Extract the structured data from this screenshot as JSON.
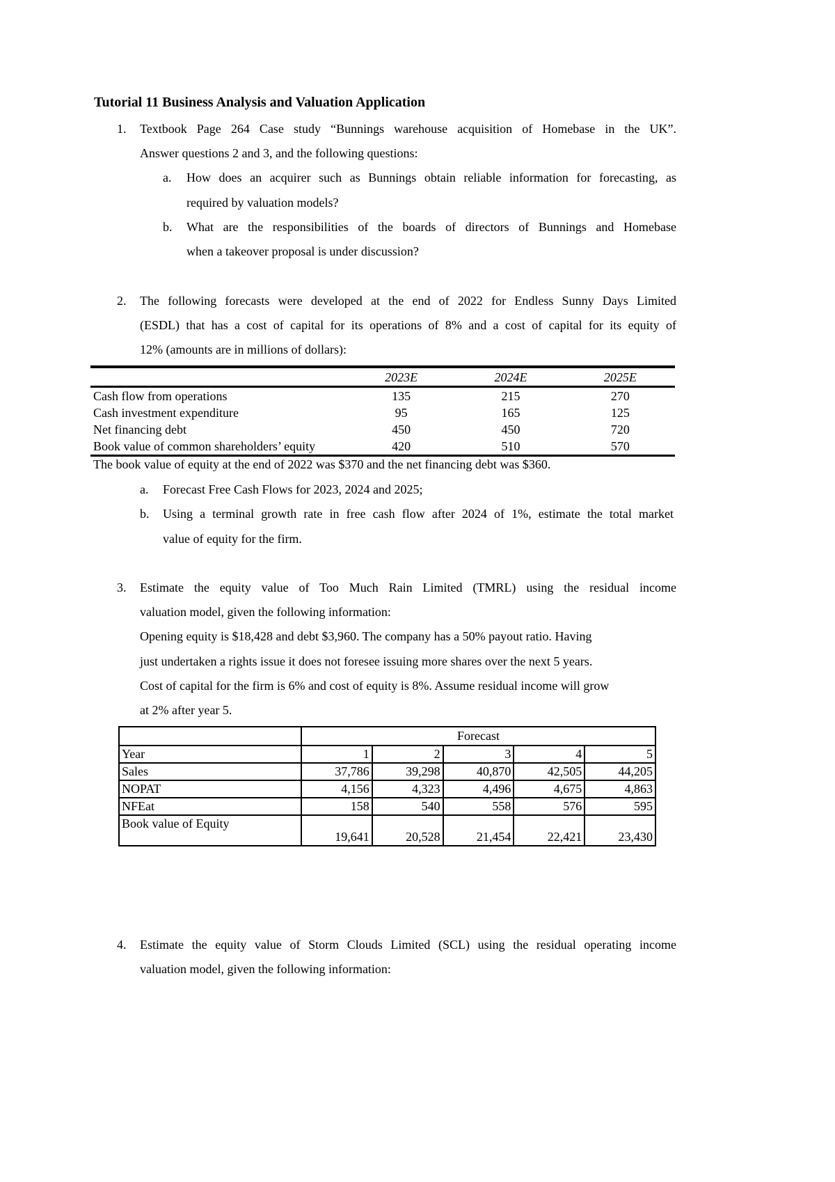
{
  "title": "Tutorial 11 Business Analysis and Valuation Application",
  "q1": {
    "num": "1.",
    "line1": "Textbook Page 264 Case study “Bunnings warehouse acquisition of Homebase in the UK”.",
    "line2": "Answer questions 2 and 3, and the following questions:",
    "a": {
      "label": "a.",
      "line1": "How does an acquirer such as Bunnings obtain reliable information for forecasting, as",
      "line2": "required by valuation models?"
    },
    "b": {
      "label": "b.",
      "line1": "What are the responsibilities of the boards of directors of Bunnings and Homebase",
      "line2": "when a takeover proposal is under discussion?"
    }
  },
  "q2": {
    "num": "2.",
    "line1": "The following forecasts were developed at the end of 2022 for Endless Sunny Days Limited",
    "line2": "(ESDL) that has a cost of capital for its operations of 8% and a cost of capital for its equity of",
    "line3": "12% (amounts are in millions of dollars):",
    "table": {
      "headers": [
        "2023E",
        "2024E",
        "2025E"
      ],
      "rows": [
        {
          "label": "Cash flow from operations",
          "values": [
            "135",
            "215",
            "270"
          ]
        },
        {
          "label": "Cash investment expenditure",
          "values": [
            "95",
            "165",
            "125"
          ]
        },
        {
          "label": "Net financing debt",
          "values": [
            "450",
            "450",
            "720"
          ]
        },
        {
          "label": "Book value of common shareholders’ equity",
          "values": [
            "420",
            "510",
            "570"
          ]
        }
      ]
    },
    "note": "The book value of equity at the end of 2022 was $370 and the net financing debt was $360.",
    "a": {
      "label": "a.",
      "line1": "Forecast Free Cash Flows for 2023, 2024 and 2025;"
    },
    "b": {
      "label": "b.",
      "line1": "Using a terminal growth rate in free cash flow after 2024 of 1%, estimate the total market",
      "line2": "value of equity for the firm."
    }
  },
  "q3": {
    "num": "3.",
    "line1": "Estimate the equity value of Too Much Rain Limited (TMRL) using the residual income",
    "line2": "valuation model, given the following information:",
    "line3": "Opening equity is $18,428 and debt $3,960. The company has a 50% payout ratio. Having",
    "line4": "just undertaken a rights issue it does not foresee issuing more shares over the next 5 years.",
    "line5": "Cost of capital for the firm is 6% and cost of equity is 8%. Assume residual income will grow",
    "line6": "at 2% after year 5.",
    "table": {
      "group_header": "Forecast",
      "rows": [
        {
          "label": "Year",
          "values": [
            "1",
            "2",
            "3",
            "4",
            "5"
          ]
        },
        {
          "label": "Sales",
          "values": [
            "37,786",
            "39,298",
            "40,870",
            "42,505",
            "44,205"
          ]
        },
        {
          "label": "NOPAT",
          "values": [
            "4,156",
            "4,323",
            "4,496",
            "4,675",
            "4,863"
          ]
        },
        {
          "label": "NFEat",
          "values": [
            "158",
            "540",
            "558",
            "576",
            "595"
          ]
        },
        {
          "label": "Book value of Equity",
          "values": [
            "19,641",
            "20,528",
            "21,454",
            "22,421",
            "23,430"
          ]
        }
      ]
    }
  },
  "q4": {
    "num": "4.",
    "line1": "Estimate the equity value of Storm Clouds Limited (SCL) using the residual operating income",
    "line2": "valuation model, given the following information:"
  }
}
